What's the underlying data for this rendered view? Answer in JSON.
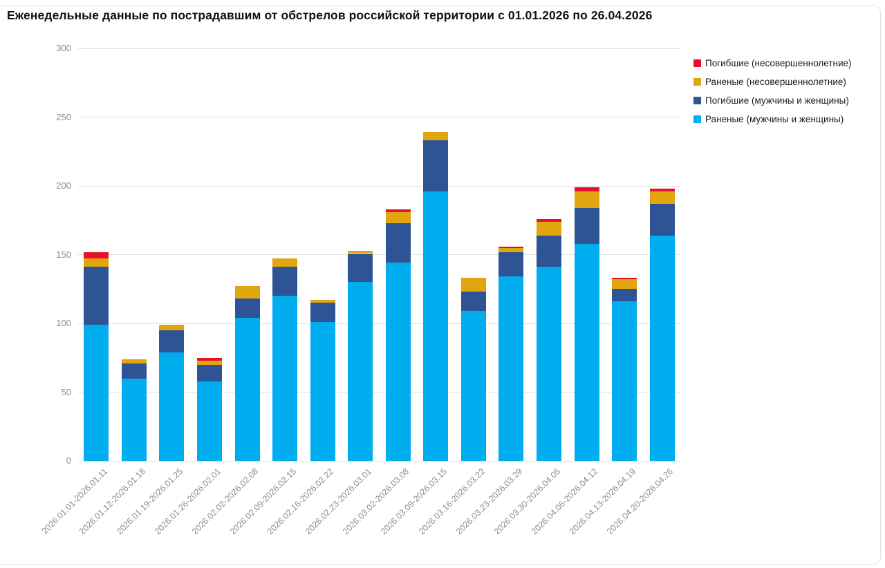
{
  "chart_data": {
    "type": "bar",
    "stacked": true,
    "title": "Еженедельные данные по пострадавшим от обстрелов российской территории с 01.01.2026 по 26.04.2026",
    "categories": [
      "2026.01.01-2026.01.11",
      "2026.01.12-2026.01.18",
      "2026.01.19-2026.01.25",
      "2026.01.26-2026.02.01",
      "2026.02.02-2026.02.08",
      "2026.02.09-2026.02.15",
      "2026.02.16-2026.02.22",
      "2026.02.23-2026.03.01",
      "2026.03.02-2026.03.08",
      "2026.03.09-2026.03.15",
      "2026.03.16-2026.03.22",
      "2026.03.23-2026.03.29",
      "2026.03.30-2026.04.05",
      "2026.04.06-2026.04.12",
      "2026.04.13-2026.04.19",
      "2026.04.20-2026.04.26"
    ],
    "series": [
      {
        "name": "Раненые (мужчины и женщины)",
        "color": "#00adef",
        "values": [
          99,
          60,
          79,
          58,
          104,
          120,
          101,
          130,
          144,
          196,
          109,
          134,
          141,
          158,
          116,
          164
        ]
      },
      {
        "name": "Погибшие (мужчины и женщины)",
        "color": "#2f5496",
        "values": [
          42,
          11,
          16,
          12,
          14,
          21,
          14,
          21,
          29,
          37,
          14,
          18,
          23,
          26,
          9,
          23
        ]
      },
      {
        "name": "Раненые (несовершеннолетние)",
        "color": "#e0a50f",
        "values": [
          6,
          3,
          4,
          3,
          9,
          6,
          2,
          2,
          8,
          6,
          10,
          3,
          10,
          12,
          7,
          9
        ]
      },
      {
        "name": "Погибшие (несовершеннолетние)",
        "color": "#e8112d",
        "values": [
          5,
          0,
          0,
          2,
          0,
          0,
          0,
          0,
          2,
          0,
          0,
          1,
          2,
          3,
          1,
          2
        ]
      }
    ],
    "totals": [
      152,
      74,
      99,
      75,
      127,
      147,
      117,
      153,
      183,
      239,
      133,
      156,
      176,
      199,
      133,
      198
    ],
    "legend_order": [
      "Погибшие (несовершеннолетние)",
      "Раненые (несовершеннолетние)",
      "Погибшие (мужчины и женщины)",
      "Раненые (мужчины и женщины)"
    ],
    "legend_position": "top-right",
    "xlabel": "",
    "ylabel": "",
    "y_ticks": [
      0,
      50,
      100,
      150,
      200,
      250,
      300
    ],
    "ylim": [
      0,
      300
    ],
    "grid": true,
    "grid_color": "#e0e0e0",
    "tick_label_color": "#8c8c8c"
  }
}
